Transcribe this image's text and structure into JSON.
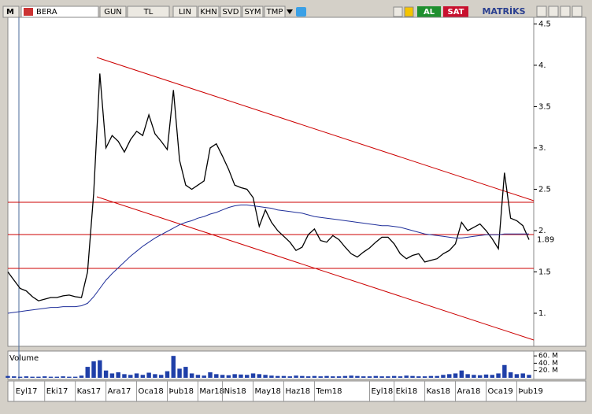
{
  "toolbar": {
    "logo": "M",
    "symbol": "BERA",
    "buttons": [
      "GUN",
      "TL",
      "LIN",
      "KHN",
      "SVD",
      "SYM",
      "TMP"
    ],
    "buy": "AL",
    "sell": "SAT",
    "brand": "MATRİKS"
  },
  "chart_data": {
    "type": "line",
    "categories": [
      null,
      "Eyl17",
      null,
      null,
      null,
      null,
      "Eki17",
      null,
      null,
      null,
      null,
      "Kas17",
      null,
      null,
      null,
      null,
      "Ara17",
      null,
      null,
      null,
      null,
      "Oca18",
      null,
      null,
      null,
      null,
      "Þub18",
      null,
      null,
      null,
      null,
      "Mar18",
      null,
      null,
      null,
      "Nis18",
      null,
      null,
      null,
      null,
      "May18",
      null,
      null,
      null,
      null,
      "Haz18",
      null,
      null,
      null,
      null,
      "Tem18",
      null,
      null,
      null,
      null,
      null,
      null,
      null,
      null,
      "Eyl18",
      null,
      null,
      null,
      "Eki18",
      null,
      null,
      null,
      null,
      "Kas18",
      null,
      null,
      null,
      null,
      "Ara18",
      null,
      null,
      null,
      null,
      "Oca19",
      null,
      null,
      null,
      null,
      "Þub19",
      null,
      null
    ],
    "series": [
      {
        "color": "#000000",
        "values": [
          1.5,
          1.4,
          1.3,
          1.27,
          1.2,
          1.15,
          1.17,
          1.19,
          1.19,
          1.21,
          1.22,
          1.2,
          1.19,
          1.5,
          2.45,
          3.9,
          3.0,
          3.15,
          3.08,
          2.95,
          3.1,
          3.2,
          3.15,
          3.4,
          3.17,
          3.08,
          2.98,
          3.7,
          2.85,
          2.55,
          2.5,
          2.55,
          2.6,
          3.0,
          3.05,
          2.9,
          2.74,
          2.55,
          2.52,
          2.5,
          2.4,
          2.05,
          2.25,
          2.1,
          2.0,
          1.93,
          1.86,
          1.76,
          1.8,
          1.95,
          2.02,
          1.88,
          1.86,
          1.94,
          1.89,
          1.8,
          1.72,
          1.68,
          1.74,
          1.79,
          1.86,
          1.92,
          1.92,
          1.84,
          1.72,
          1.66,
          1.7,
          1.72,
          1.62,
          1.64,
          1.66,
          1.72,
          1.76,
          1.84,
          2.1,
          2.0,
          2.04,
          2.08,
          2.0,
          1.9,
          1.78,
          2.7,
          2.15,
          2.12,
          2.06,
          1.89
        ]
      },
      {
        "color": "#1f2f9a",
        "values": [
          1.0,
          1.01,
          1.02,
          1.03,
          1.04,
          1.05,
          1.06,
          1.07,
          1.07,
          1.08,
          1.08,
          1.08,
          1.09,
          1.12,
          1.2,
          1.3,
          1.4,
          1.48,
          1.55,
          1.62,
          1.69,
          1.75,
          1.81,
          1.86,
          1.91,
          1.95,
          1.99,
          2.03,
          2.07,
          2.1,
          2.12,
          2.15,
          2.17,
          2.2,
          2.22,
          2.25,
          2.28,
          2.3,
          2.31,
          2.31,
          2.3,
          2.29,
          2.28,
          2.27,
          2.25,
          2.24,
          2.23,
          2.22,
          2.21,
          2.19,
          2.17,
          2.16,
          2.15,
          2.14,
          2.13,
          2.12,
          2.11,
          2.1,
          2.09,
          2.08,
          2.07,
          2.06,
          2.06,
          2.05,
          2.04,
          2.02,
          2.0,
          1.98,
          1.96,
          1.95,
          1.94,
          1.93,
          1.92,
          1.91,
          1.91,
          1.92,
          1.93,
          1.94,
          1.95,
          1.95,
          1.95,
          1.96,
          1.96,
          1.96,
          1.96,
          1.96
        ]
      }
    ],
    "last_label": "1.89",
    "ylim": [
      0.6,
      4.58
    ],
    "yticks": [
      {
        "value": 1,
        "label": "1."
      },
      1.5,
      {
        "value": 2,
        "label": "2."
      },
      2.5,
      {
        "value": 3,
        "label": "3."
      },
      3.5,
      {
        "value": 4,
        "label": "4."
      },
      4.5
    ],
    "volume": {
      "label": "Volume",
      "color": "#1f3fa8",
      "values": [
        5,
        4,
        3,
        4,
        3,
        3,
        4,
        3,
        3,
        4,
        3,
        3,
        6,
        30,
        45,
        48,
        20,
        12,
        15,
        10,
        8,
        12,
        8,
        14,
        10,
        8,
        18,
        60,
        25,
        30,
        12,
        8,
        6,
        15,
        10,
        8,
        7,
        10,
        9,
        8,
        12,
        10,
        8,
        6,
        5,
        5,
        4,
        6,
        5,
        4,
        5,
        4,
        5,
        4,
        4,
        5,
        6,
        5,
        4,
        4,
        5,
        4,
        4,
        5,
        4,
        6,
        5,
        4,
        4,
        5,
        5,
        8,
        10,
        12,
        20,
        10,
        8,
        7,
        9,
        8,
        12,
        35,
        15,
        10,
        12,
        8
      ],
      "ylim": [
        0,
        69
      ],
      "yticks": [
        {
          "value": 20,
          "label": "20. M"
        },
        {
          "value": 40,
          "label": "40. M"
        },
        {
          "value": 60,
          "label": "60. M"
        }
      ]
    }
  }
}
